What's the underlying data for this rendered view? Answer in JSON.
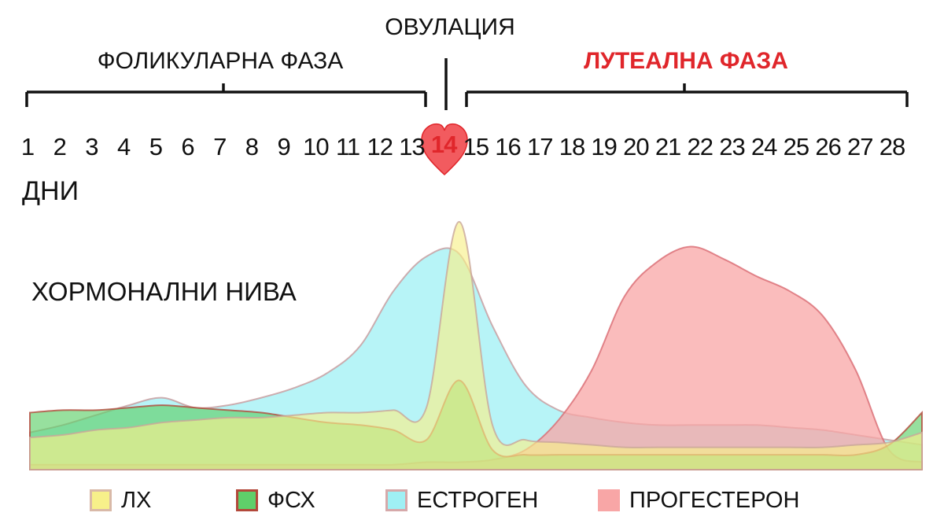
{
  "header": {
    "ovulation": "ОВУЛАЦИЯ",
    "follicular_phase": "ФОЛИКУЛАРНА ФАЗА",
    "luteal_phase": "ЛУТЕАЛНА ФАЗА",
    "days_label": "ДНИ",
    "hormone_levels": "ХОРМОНАЛНИ НИВА",
    "ovulation_day": "14"
  },
  "colors": {
    "luteal_text": "#e0262b",
    "heart": "#f25b5f",
    "lh_fill": "#f7f08a",
    "fsh_fill": "#5fcf6a",
    "fsh_border": "#b3483b",
    "estrogen_fill": "#9ff0f4",
    "progesterone_fill": "#f8a6a6",
    "overlap_grey": "#9f9f9f"
  },
  "legend": [
    {
      "key": "lh",
      "label": "ЛХ"
    },
    {
      "key": "fsh",
      "label": "ФСХ"
    },
    {
      "key": "estrogen",
      "label": "ЕСТРОГЕН"
    },
    {
      "key": "progesterone",
      "label": "ПРОГЕСТЕРОН"
    }
  ],
  "chart_data": {
    "type": "area",
    "title": "ХОРМОНАЛНИ НИВА",
    "xlabel": "ДНИ",
    "ylabel": "",
    "x": [
      1,
      2,
      3,
      4,
      5,
      6,
      7,
      8,
      9,
      10,
      11,
      12,
      13,
      14,
      15,
      16,
      17,
      18,
      19,
      20,
      21,
      22,
      23,
      24,
      25,
      26,
      27,
      28
    ],
    "day_labels": [
      "1",
      "2",
      "3",
      "4",
      "5",
      "6",
      "7",
      "8",
      "9",
      "10",
      "11",
      "12",
      "13",
      "14",
      "15",
      "16",
      "17",
      "18",
      "19",
      "20",
      "21",
      "22",
      "23",
      "24",
      "25",
      "26",
      "27",
      "28"
    ],
    "phases": [
      {
        "name": "ФОЛИКУЛАРНА ФАЗА",
        "from_day": 1,
        "to_day": 13
      },
      {
        "name": "ЛУТЕАЛНА ФАЗА",
        "from_day": 15,
        "to_day": 28
      }
    ],
    "ovulation_day": 14,
    "y_axis_visible": false,
    "ylim": [
      0,
      100
    ],
    "series": [
      {
        "name": "ЛХ",
        "key": "lh",
        "values": [
          13,
          14,
          16,
          17,
          19,
          20,
          21,
          21,
          22,
          23,
          23,
          24,
          25,
          100,
          18,
          12,
          11,
          10,
          9,
          9,
          9,
          9,
          9,
          9,
          9,
          10,
          11,
          15
        ]
      },
      {
        "name": "ФСХ",
        "key": "fsh",
        "values": [
          23,
          24,
          24,
          25,
          26,
          25,
          24,
          23,
          21,
          19,
          18,
          16,
          12,
          36,
          8,
          6,
          6,
          6,
          6,
          6,
          6,
          6,
          6,
          6,
          6,
          6,
          10,
          23
        ]
      },
      {
        "name": "ЕСТРОГЕН",
        "key": "estrogen",
        "values": [
          15,
          18,
          22,
          26,
          29,
          25,
          26,
          29,
          33,
          39,
          50,
          72,
          86,
          87,
          58,
          34,
          24,
          21,
          19,
          18,
          18,
          18,
          18,
          17,
          16,
          14,
          12,
          10
        ]
      },
      {
        "name": "ПРОГЕСТЕРОН",
        "key": "progesterone",
        "values": [
          2,
          2,
          2,
          2,
          2,
          2,
          2,
          2,
          2,
          2,
          2,
          2,
          3,
          3,
          4,
          8,
          20,
          40,
          70,
          84,
          90,
          85,
          78,
          72,
          62,
          40,
          8,
          3
        ]
      }
    ]
  }
}
